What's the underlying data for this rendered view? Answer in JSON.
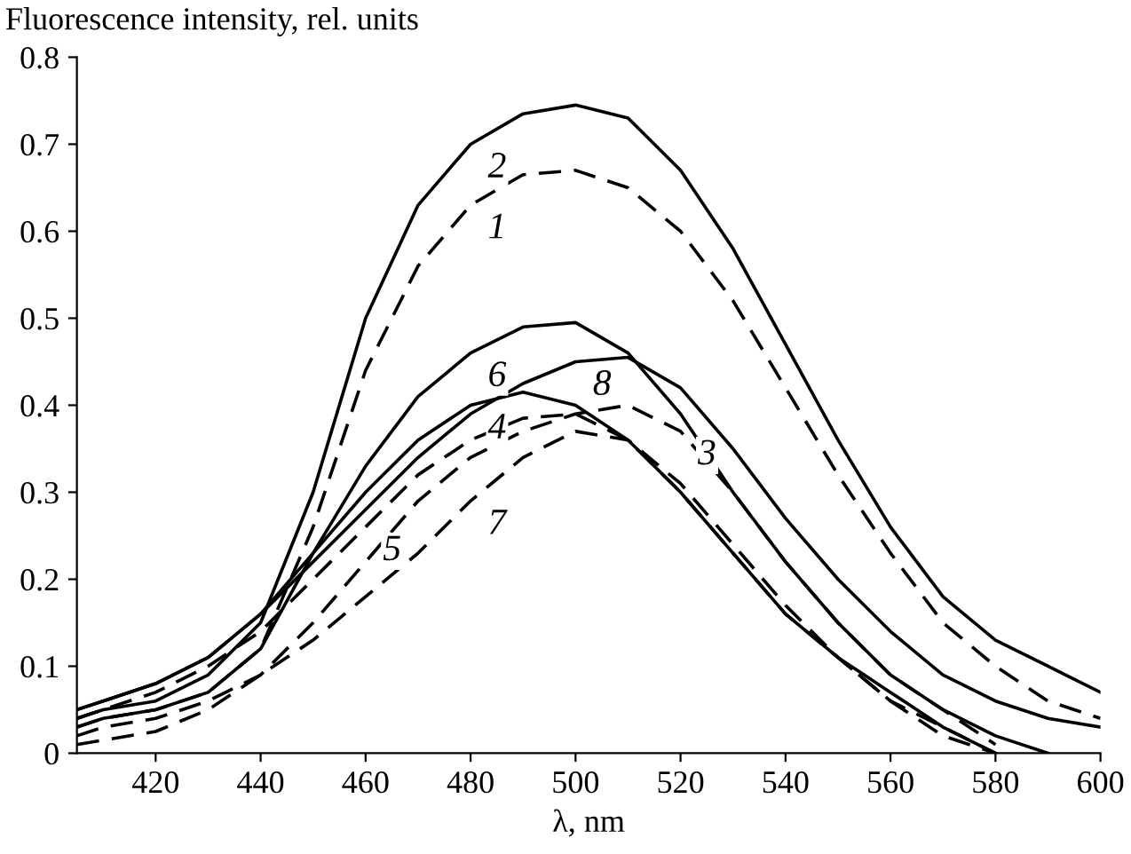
{
  "chart_data": {
    "type": "line",
    "xlabel": "λ, nm",
    "ylabel": "Fluorescence intensity, rel. units",
    "x": [
      405,
      410,
      420,
      430,
      440,
      450,
      460,
      470,
      480,
      490,
      500,
      510,
      520,
      530,
      540,
      550,
      560,
      570,
      580,
      590,
      600
    ],
    "xlim": [
      405,
      600
    ],
    "xticks": [
      420,
      440,
      460,
      480,
      500,
      520,
      540,
      560,
      580,
      600
    ],
    "ylim": [
      0,
      0.8
    ],
    "yticks": [
      0,
      0.1,
      0.2,
      0.3,
      0.4,
      0.5,
      0.6,
      0.7,
      0.8
    ],
    "grid": false,
    "legend": false,
    "marker": "none",
    "series": [
      {
        "color": "#000000",
        "line_style": "dashed",
        "values": [
          0.03,
          0.04,
          0.05,
          0.07,
          0.12,
          0.26,
          0.44,
          0.56,
          0.63,
          0.665,
          0.67,
          0.65,
          0.6,
          0.52,
          0.42,
          0.32,
          0.23,
          0.15,
          0.1,
          0.06,
          0.04
        ]
      },
      {
        "color": "#000000",
        "line_style": "solid",
        "values": [
          0.04,
          0.05,
          0.06,
          0.09,
          0.15,
          0.3,
          0.5,
          0.63,
          0.7,
          0.735,
          0.745,
          0.73,
          0.67,
          0.58,
          0.47,
          0.36,
          0.26,
          0.18,
          0.13,
          0.1,
          0.07
        ]
      },
      {
        "color": "#000000",
        "line_style": "dashed",
        "values": [
          0.02,
          0.03,
          0.04,
          0.06,
          0.09,
          0.15,
          0.22,
          0.29,
          0.34,
          0.37,
          0.39,
          0.4,
          0.37,
          0.3,
          0.22,
          0.15,
          0.09,
          0.05,
          0.01,
          null,
          null
        ]
      },
      {
        "color": "#000000",
        "line_style": "solid",
        "values": [
          0.05,
          0.06,
          0.08,
          0.11,
          0.16,
          0.23,
          0.3,
          0.36,
          0.4,
          0.415,
          0.4,
          0.36,
          0.3,
          0.23,
          0.16,
          0.11,
          0.07,
          0.03,
          0.0,
          null,
          null
        ]
      },
      {
        "color": "#000000",
        "line_style": "dashed",
        "values": [
          0.04,
          0.05,
          0.07,
          0.1,
          0.14,
          0.2,
          0.26,
          0.32,
          0.36,
          0.385,
          0.39,
          0.36,
          0.3,
          0.23,
          0.16,
          0.11,
          0.06,
          0.03,
          0.0,
          null,
          null
        ]
      },
      {
        "color": "#000000",
        "line_style": "solid",
        "values": [
          0.03,
          0.04,
          0.05,
          0.07,
          0.12,
          0.23,
          0.33,
          0.41,
          0.46,
          0.49,
          0.495,
          0.46,
          0.39,
          0.3,
          0.22,
          0.15,
          0.09,
          0.05,
          0.02,
          0.0,
          null
        ]
      },
      {
        "color": "#000000",
        "line_style": "dashed",
        "values": [
          0.01,
          0.015,
          0.025,
          0.05,
          0.09,
          0.13,
          0.18,
          0.23,
          0.29,
          0.34,
          0.37,
          0.36,
          0.31,
          0.24,
          0.17,
          0.11,
          0.06,
          0.02,
          0.0,
          null,
          null
        ]
      },
      {
        "color": "#000000",
        "line_style": "solid",
        "values": [
          0.05,
          0.06,
          0.08,
          0.11,
          0.16,
          0.22,
          0.28,
          0.34,
          0.39,
          0.425,
          0.45,
          0.455,
          0.42,
          0.35,
          0.27,
          0.2,
          0.14,
          0.09,
          0.06,
          0.04,
          0.03
        ]
      }
    ],
    "annotations": [
      {
        "text": "1",
        "x": 480,
        "y": 0.63
      },
      {
        "text": "2",
        "x": 480,
        "y": 0.7
      },
      {
        "text": "3",
        "x": 520,
        "y": 0.37
      },
      {
        "text": "4",
        "x": 480,
        "y": 0.4
      },
      {
        "text": "5",
        "x": 460,
        "y": 0.26
      },
      {
        "text": "6",
        "x": 480,
        "y": 0.46
      },
      {
        "text": "7",
        "x": 480,
        "y": 0.29
      },
      {
        "text": "8",
        "x": 500,
        "y": 0.45
      }
    ]
  }
}
